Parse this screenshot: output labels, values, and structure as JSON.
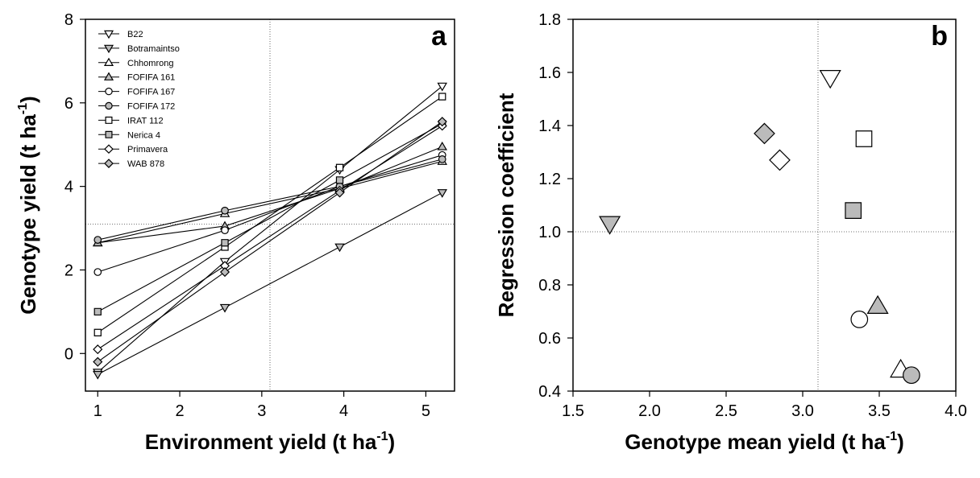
{
  "chart_data": [
    {
      "type": "line",
      "panel_label": "a",
      "xlabel": "Environment yield (t ha",
      "xlabel_sup": "-1",
      "xlabel_end": ")",
      "ylabel": "Genotype yield (t ha",
      "ylabel_sup": "-1",
      "ylabel_end": ")",
      "xlim": [
        0.85,
        5.35
      ],
      "ylim": [
        -0.9,
        8
      ],
      "xticks": [
        1,
        2,
        3,
        4,
        5
      ],
      "yticks": [
        0,
        2,
        4,
        6,
        8
      ],
      "reference_lines": {
        "x": 3.1,
        "y": 3.1
      },
      "legend_position": "top-left",
      "x": [
        1.0,
        2.55,
        3.95,
        5.2
      ],
      "series": [
        {
          "name": "B22",
          "marker": "triangle-down",
          "fill": "#ffffff",
          "values": [
            -0.45,
            2.2,
            4.4,
            6.4
          ]
        },
        {
          "name": "Botramaintso",
          "marker": "triangle-down",
          "fill": "#bbbbbb",
          "values": [
            -0.5,
            1.1,
            2.55,
            3.85
          ]
        },
        {
          "name": "Chhomrong",
          "marker": "triangle-up",
          "fill": "#ffffff",
          "values": [
            2.65,
            3.35,
            3.95,
            4.6
          ]
        },
        {
          "name": "FOFIFA 161",
          "marker": "triangle-up",
          "fill": "#bbbbbb",
          "values": [
            2.65,
            3.05,
            3.95,
            4.95
          ]
        },
        {
          "name": "FOFIFA 167",
          "marker": "circle",
          "fill": "#ffffff",
          "values": [
            1.95,
            2.95,
            4.0,
            4.75
          ]
        },
        {
          "name": "FOFIFA 172",
          "marker": "circle",
          "fill": "#bbbbbb",
          "values": [
            2.72,
            3.42,
            4.0,
            4.65
          ]
        },
        {
          "name": "IRAT 112",
          "marker": "square",
          "fill": "#ffffff",
          "values": [
            0.5,
            2.55,
            4.45,
            6.15
          ]
        },
        {
          "name": "Nerica 4",
          "marker": "square",
          "fill": "#bbbbbb",
          "values": [
            1.0,
            2.65,
            4.15,
            5.5
          ]
        },
        {
          "name": "Primavera",
          "marker": "diamond",
          "fill": "#ffffff",
          "values": [
            0.1,
            2.1,
            3.9,
            5.45
          ]
        },
        {
          "name": "WAB 878",
          "marker": "diamond",
          "fill": "#bbbbbb",
          "values": [
            -0.2,
            1.95,
            3.85,
            5.55
          ]
        }
      ]
    },
    {
      "type": "scatter",
      "panel_label": "b",
      "xlabel": "Genotype mean yield (t ha",
      "xlabel_sup": "-1",
      "xlabel_end": ")",
      "ylabel": "Regression coefficient",
      "xlim": [
        1.5,
        4.0
      ],
      "ylim": [
        0.4,
        1.8
      ],
      "xticks": [
        1.5,
        2.0,
        2.5,
        3.0,
        3.5,
        4.0
      ],
      "xtick_labels": [
        "1.5",
        "2.0",
        "2.5",
        "3.0",
        "3.5",
        "4.0"
      ],
      "yticks": [
        0.4,
        0.6,
        0.8,
        1.0,
        1.2,
        1.4,
        1.6,
        1.8
      ],
      "ytick_labels": [
        "0.4",
        "0.6",
        "0.8",
        "1.0",
        "1.2",
        "1.4",
        "1.6",
        "1.8"
      ],
      "reference_lines": {
        "x": 3.1,
        "y": 1.0
      },
      "points": [
        {
          "genotype": "B22",
          "marker": "triangle-down",
          "fill": "#ffffff",
          "x": 3.18,
          "y": 1.58
        },
        {
          "genotype": "Botramaintso",
          "marker": "triangle-down",
          "fill": "#bbbbbb",
          "x": 1.74,
          "y": 1.03
        },
        {
          "genotype": "Chhomrong",
          "marker": "triangle-up",
          "fill": "#ffffff",
          "x": 3.64,
          "y": 0.48
        },
        {
          "genotype": "FOFIFA 161",
          "marker": "triangle-up",
          "fill": "#bbbbbb",
          "x": 3.49,
          "y": 0.72
        },
        {
          "genotype": "FOFIFA 167",
          "marker": "circle",
          "fill": "#ffffff",
          "x": 3.37,
          "y": 0.67
        },
        {
          "genotype": "FOFIFA 172",
          "marker": "circle",
          "fill": "#bbbbbb",
          "x": 3.71,
          "y": 0.46
        },
        {
          "genotype": "IRAT 112",
          "marker": "square",
          "fill": "#ffffff",
          "x": 3.4,
          "y": 1.35
        },
        {
          "genotype": "Nerica 4",
          "marker": "square",
          "fill": "#bbbbbb",
          "x": 3.33,
          "y": 1.08
        },
        {
          "genotype": "Primavera",
          "marker": "diamond",
          "fill": "#ffffff",
          "x": 2.85,
          "y": 1.27
        },
        {
          "genotype": "WAB 878",
          "marker": "diamond",
          "fill": "#bbbbbb",
          "x": 2.75,
          "y": 1.37
        }
      ]
    }
  ]
}
